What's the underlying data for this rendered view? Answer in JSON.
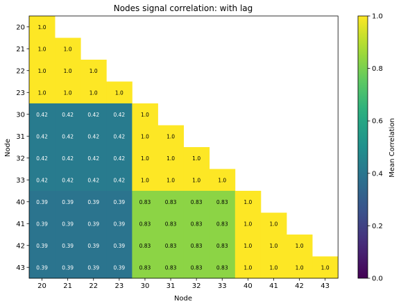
{
  "chart_data": {
    "type": "heatmap",
    "title": "Nodes signal correlation: with lag",
    "xlabel": "Node",
    "ylabel": "Node",
    "x_categories": [
      "20",
      "21",
      "22",
      "23",
      "30",
      "31",
      "32",
      "33",
      "40",
      "41",
      "42",
      "43"
    ],
    "y_categories": [
      "20",
      "21",
      "22",
      "23",
      "30",
      "31",
      "32",
      "33",
      "40",
      "41",
      "42",
      "43"
    ],
    "matrix": [
      [
        1.0,
        null,
        null,
        null,
        null,
        null,
        null,
        null,
        null,
        null,
        null,
        null
      ],
      [
        1.0,
        1.0,
        null,
        null,
        null,
        null,
        null,
        null,
        null,
        null,
        null,
        null
      ],
      [
        1.0,
        1.0,
        1.0,
        null,
        null,
        null,
        null,
        null,
        null,
        null,
        null,
        null
      ],
      [
        1.0,
        1.0,
        1.0,
        1.0,
        null,
        null,
        null,
        null,
        null,
        null,
        null,
        null
      ],
      [
        0.42,
        0.42,
        0.42,
        0.42,
        1.0,
        null,
        null,
        null,
        null,
        null,
        null,
        null
      ],
      [
        0.42,
        0.42,
        0.42,
        0.42,
        1.0,
        1.0,
        null,
        null,
        null,
        null,
        null,
        null
      ],
      [
        0.42,
        0.42,
        0.42,
        0.42,
        1.0,
        1.0,
        1.0,
        null,
        null,
        null,
        null,
        null
      ],
      [
        0.42,
        0.42,
        0.42,
        0.42,
        1.0,
        1.0,
        1.0,
        1.0,
        null,
        null,
        null,
        null
      ],
      [
        0.39,
        0.39,
        0.39,
        0.39,
        0.83,
        0.83,
        0.83,
        0.83,
        1.0,
        null,
        null,
        null
      ],
      [
        0.39,
        0.39,
        0.39,
        0.39,
        0.83,
        0.83,
        0.83,
        0.83,
        1.0,
        1.0,
        null,
        null
      ],
      [
        0.39,
        0.39,
        0.39,
        0.39,
        0.83,
        0.83,
        0.83,
        0.83,
        1.0,
        1.0,
        1.0,
        null
      ],
      [
        0.39,
        0.39,
        0.39,
        0.39,
        0.83,
        0.83,
        0.83,
        0.83,
        1.0,
        1.0,
        1.0,
        1.0
      ]
    ],
    "value_labels": true,
    "colormap": "viridis",
    "vmin": 0.0,
    "vmax": 1.0,
    "colorbar": {
      "label": "Mean Correlation",
      "ticks": [
        0.0,
        0.2,
        0.4,
        0.6,
        0.8,
        1.0
      ],
      "tick_labels": [
        "0.0",
        "0.2",
        "0.4",
        "0.6",
        "0.8",
        "1.0"
      ]
    },
    "grid": false
  }
}
